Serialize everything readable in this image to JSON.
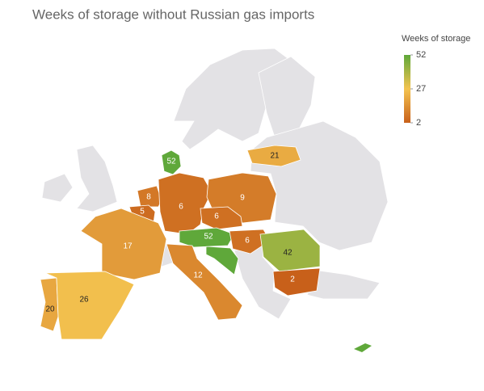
{
  "chart_data": {
    "type": "choropleth",
    "title": "Weeks of storage without Russian gas imports",
    "legend_title": "Weeks of storage",
    "clim": [
      2,
      52
    ],
    "cticks": [
      2,
      27,
      52
    ],
    "colors": [
      "#c8601a",
      "#f4c34f",
      "#5fa83a"
    ],
    "values": [
      52,
      8,
      5,
      6,
      9,
      6,
      21,
      52,
      6,
      17,
      12,
      42,
      2,
      20,
      26
    ]
  }
}
